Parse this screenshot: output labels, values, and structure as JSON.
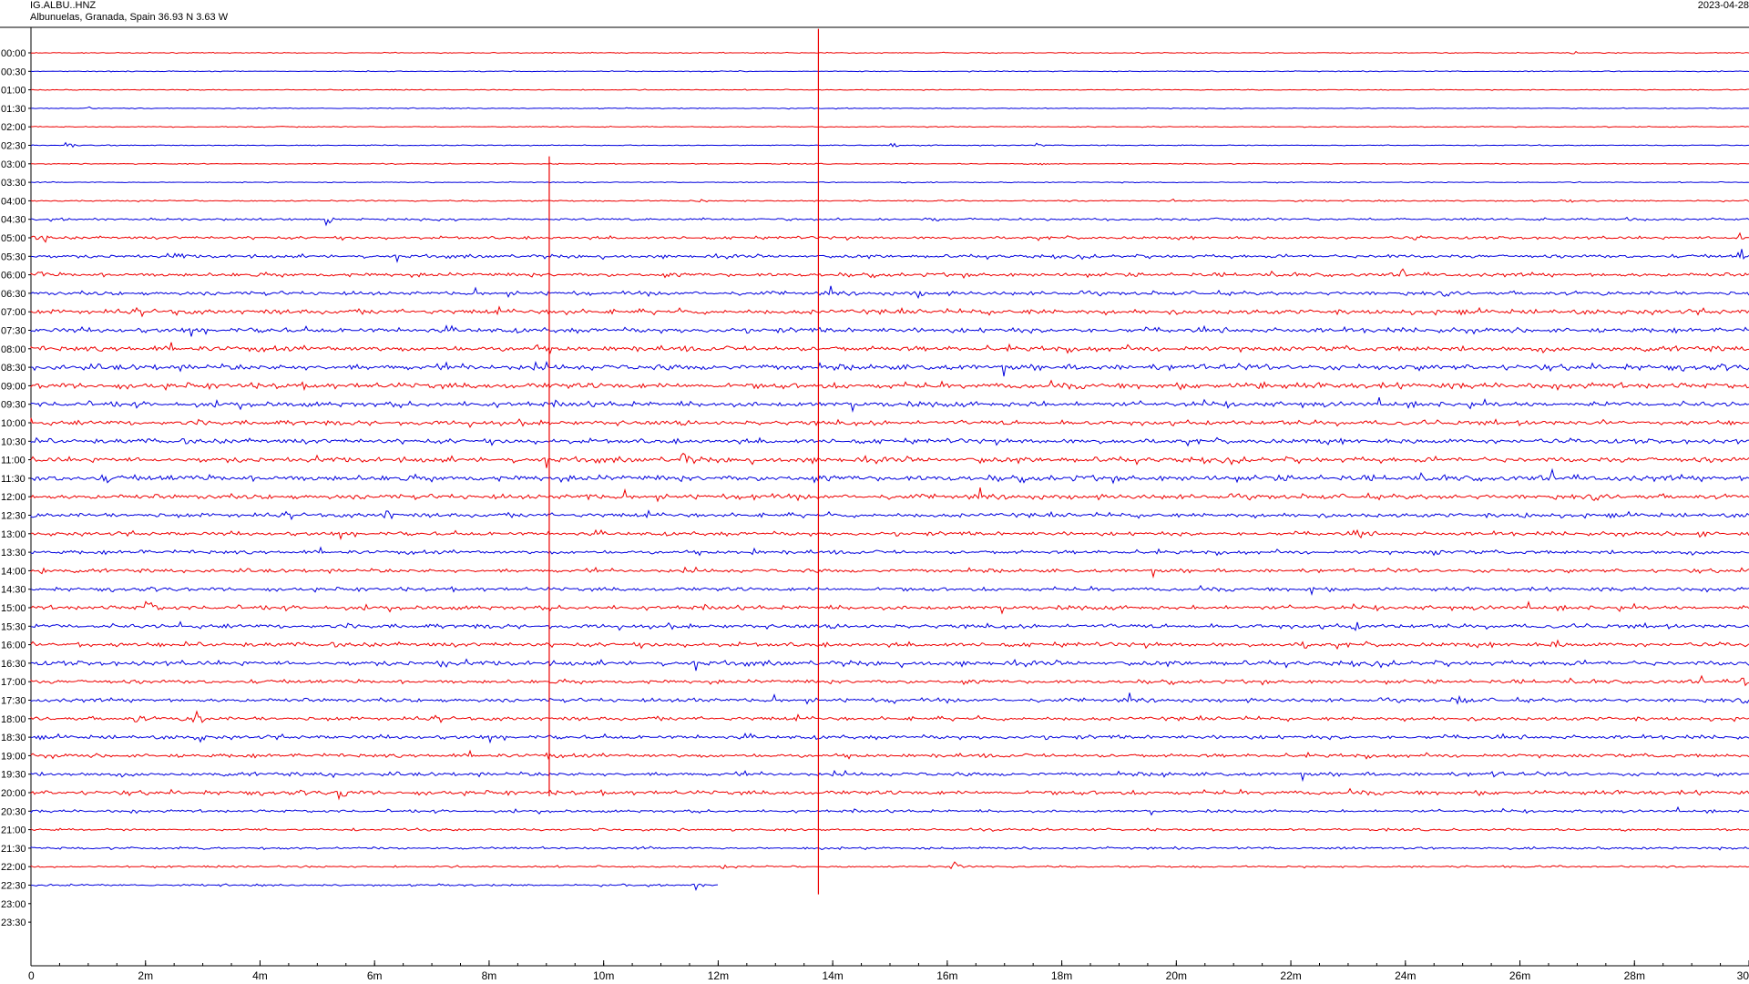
{
  "header": {
    "station": "IG.ALBU..HNZ",
    "location": "Albunuelas, Granada, Spain  36.93 N 3.63 W",
    "date": "2023-04-28"
  },
  "chart_data": {
    "type": "line",
    "title": "IG.ALBU..HNZ",
    "subtitle": "Albunuelas, Granada, Spain  36.93 N 3.63 W",
    "date": "2023-04-28",
    "xlabel": "",
    "ylabel": "",
    "x_unit": "minutes",
    "xlim": [
      0,
      30
    ],
    "x_ticks": [
      0,
      2,
      4,
      6,
      8,
      10,
      12,
      14,
      16,
      18,
      20,
      22,
      24,
      26,
      28,
      30
    ],
    "x_tick_labels": [
      "0",
      "2m",
      "4m",
      "6m",
      "8m",
      "10m",
      "12m",
      "14m",
      "16m",
      "18m",
      "20m",
      "22m",
      "24m",
      "26m",
      "28m",
      "30"
    ],
    "row_labels": [
      "00:00",
      "00:30",
      "01:00",
      "01:30",
      "02:00",
      "02:30",
      "03:00",
      "03:30",
      "04:00",
      "04:30",
      "05:00",
      "05:30",
      "06:00",
      "06:30",
      "07:00",
      "07:30",
      "08:00",
      "08:30",
      "09:00",
      "09:30",
      "10:00",
      "10:30",
      "11:00",
      "11:30",
      "12:00",
      "12:30",
      "13:00",
      "13:30",
      "14:00",
      "14:30",
      "15:00",
      "15:30",
      "16:00",
      "16:30",
      "17:00",
      "17:30",
      "18:00",
      "18:30",
      "19:00",
      "19:30",
      "20:00",
      "20:30",
      "21:00",
      "21:30",
      "22:00",
      "22:30",
      "23:00",
      "23:30"
    ],
    "series_colors": [
      "#ee0000",
      "#0000dd"
    ],
    "noise_levels": [
      1,
      1,
      1,
      1,
      1,
      1,
      1,
      1,
      1.5,
      2.5,
      3,
      3.5,
      4,
      4,
      5,
      5,
      5.5,
      6,
      6,
      5.5,
      5,
      5,
      5.5,
      6,
      5,
      4.5,
      4,
      4,
      4,
      4,
      4.5,
      4.5,
      4.5,
      5,
      4,
      4,
      4,
      4,
      4,
      4,
      4.5,
      3,
      2.5,
      2.5,
      2,
      2,
      0,
      0
    ],
    "row_end_minutes": [
      30,
      30,
      30,
      30,
      30,
      30,
      30,
      30,
      30,
      30,
      30,
      30,
      30,
      30,
      30,
      30,
      30,
      30,
      30,
      30,
      30,
      30,
      30,
      30,
      30,
      30,
      30,
      30,
      30,
      30,
      30,
      30,
      30,
      30,
      30,
      30,
      30,
      30,
      30,
      30,
      30,
      30,
      30,
      30,
      30,
      12,
      0,
      0
    ],
    "markers": [
      {
        "minute": 9.05,
        "row_start": 5.6,
        "row_end": 40.2,
        "color": "#ee0000"
      },
      {
        "minute": 13.75,
        "row_start": -1.3,
        "row_end": 45.5,
        "color": "#ee0000"
      }
    ],
    "events": [
      {
        "row": 0,
        "minute": 26.9,
        "amp": 5
      },
      {
        "row": 3,
        "minute": 0.95,
        "amp": 4
      },
      {
        "row": 5,
        "minute": 0.65,
        "amp": 10
      },
      {
        "row": 5,
        "minute": 15.05,
        "amp": 5
      },
      {
        "row": 5,
        "minute": 17.55,
        "amp": 5
      },
      {
        "row": 6,
        "minute": 17.6,
        "amp": 6
      },
      {
        "row": 7,
        "minute": 15.2,
        "amp": 3
      },
      {
        "row": 8,
        "minute": 11.6,
        "amp": 8
      },
      {
        "row": 8,
        "minute": 19.95,
        "amp": 4
      },
      {
        "row": 8,
        "minute": 22.1,
        "amp": 4
      },
      {
        "row": 8,
        "minute": 24.45,
        "amp": 4
      },
      {
        "row": 8,
        "minute": 26.85,
        "amp": 4
      },
      {
        "row": 9,
        "minute": 5.15,
        "amp": 16
      },
      {
        "row": 9,
        "minute": 15.75,
        "amp": 9
      },
      {
        "row": 9,
        "minute": 27.9,
        "amp": 8
      },
      {
        "row": 10,
        "minute": 0.2,
        "amp": 10
      },
      {
        "row": 10,
        "minute": 24.15,
        "amp": 10
      },
      {
        "row": 10,
        "minute": 29.8,
        "amp": 14
      },
      {
        "row": 11,
        "minute": 2.55,
        "amp": 14
      },
      {
        "row": 11,
        "minute": 23.7,
        "amp": 10
      },
      {
        "row": 11,
        "minute": 29.85,
        "amp": 11
      },
      {
        "row": 12,
        "minute": 0.15,
        "amp": 12
      },
      {
        "row": 12,
        "minute": 23.95,
        "amp": 8
      },
      {
        "row": 13,
        "minute": 15.45,
        "amp": 12
      },
      {
        "row": 14,
        "minute": 17.5,
        "amp": 10
      },
      {
        "row": 14,
        "minute": 2.5,
        "amp": 8
      },
      {
        "row": 14,
        "minute": 9.35,
        "amp": 12
      },
      {
        "row": 15,
        "minute": 17.2,
        "amp": 8
      },
      {
        "row": 15,
        "minute": 4.2,
        "amp": 8
      },
      {
        "row": 16,
        "minute": 8.85,
        "amp": 12
      },
      {
        "row": 17,
        "minute": 7.65,
        "amp": 12
      },
      {
        "row": 18,
        "minute": 21.45,
        "amp": 20
      },
      {
        "row": 19,
        "minute": 17.5,
        "amp": 10
      },
      {
        "row": 20,
        "minute": 23.7,
        "amp": 8
      },
      {
        "row": 21,
        "minute": 9.5,
        "amp": 10
      },
      {
        "row": 22,
        "minute": 11.4,
        "amp": 20
      },
      {
        "row": 22,
        "minute": 16.6,
        "amp": 12
      },
      {
        "row": 23,
        "minute": 1.3,
        "amp": 14
      },
      {
        "row": 24,
        "minute": 9.7,
        "amp": 10
      },
      {
        "row": 24,
        "minute": 12.6,
        "amp": 10
      },
      {
        "row": 25,
        "minute": 6.2,
        "amp": 14
      },
      {
        "row": 25,
        "minute": 26.05,
        "amp": 10
      },
      {
        "row": 26,
        "minute": 23.2,
        "amp": 12
      },
      {
        "row": 26,
        "minute": 29.15,
        "amp": 12
      },
      {
        "row": 27,
        "minute": 1.85,
        "amp": 10
      },
      {
        "row": 27,
        "minute": 12.55,
        "amp": 12
      },
      {
        "row": 27,
        "minute": 24.5,
        "amp": 12
      },
      {
        "row": 28,
        "minute": 0.2,
        "amp": 8
      },
      {
        "row": 29,
        "minute": 22.35,
        "amp": 8
      },
      {
        "row": 30,
        "minute": 2.05,
        "amp": 22
      },
      {
        "row": 31,
        "minute": 23.05,
        "amp": 18
      },
      {
        "row": 32,
        "minute": 0.8,
        "amp": 12
      },
      {
        "row": 32,
        "minute": 26.6,
        "amp": 12
      },
      {
        "row": 32,
        "minute": 22.25,
        "amp": 12
      },
      {
        "row": 33,
        "minute": 7.2,
        "amp": 12
      },
      {
        "row": 33,
        "minute": 29.9,
        "amp": 12
      },
      {
        "row": 34,
        "minute": 29.9,
        "amp": 10
      },
      {
        "row": 35,
        "minute": 11.55,
        "amp": 14
      },
      {
        "row": 35,
        "minute": 15.05,
        "amp": 10
      },
      {
        "row": 35,
        "minute": 24.95,
        "amp": 18
      },
      {
        "row": 36,
        "minute": 2.85,
        "amp": 26
      },
      {
        "row": 36,
        "minute": 1.85,
        "amp": 12
      },
      {
        "row": 37,
        "minute": 2.9,
        "amp": 14
      },
      {
        "row": 38,
        "minute": 9.0,
        "amp": 8
      },
      {
        "row": 39,
        "minute": 5.2,
        "amp": 12
      },
      {
        "row": 39,
        "minute": 19.75,
        "amp": 12
      },
      {
        "row": 39,
        "minute": 25.55,
        "amp": 8
      },
      {
        "row": 40,
        "minute": 5.4,
        "amp": 18
      },
      {
        "row": 41,
        "minute": 1.75,
        "amp": 5
      },
      {
        "row": 42,
        "minute": 13.8,
        "amp": 5
      },
      {
        "row": 43,
        "minute": 2.95,
        "amp": 8
      },
      {
        "row": 43,
        "minute": 13.85,
        "amp": 5
      },
      {
        "row": 44,
        "minute": 16.1,
        "amp": 10
      },
      {
        "row": 44,
        "minute": 12.05,
        "amp": 6
      },
      {
        "row": 45,
        "minute": 11.6,
        "amp": 10
      }
    ]
  }
}
